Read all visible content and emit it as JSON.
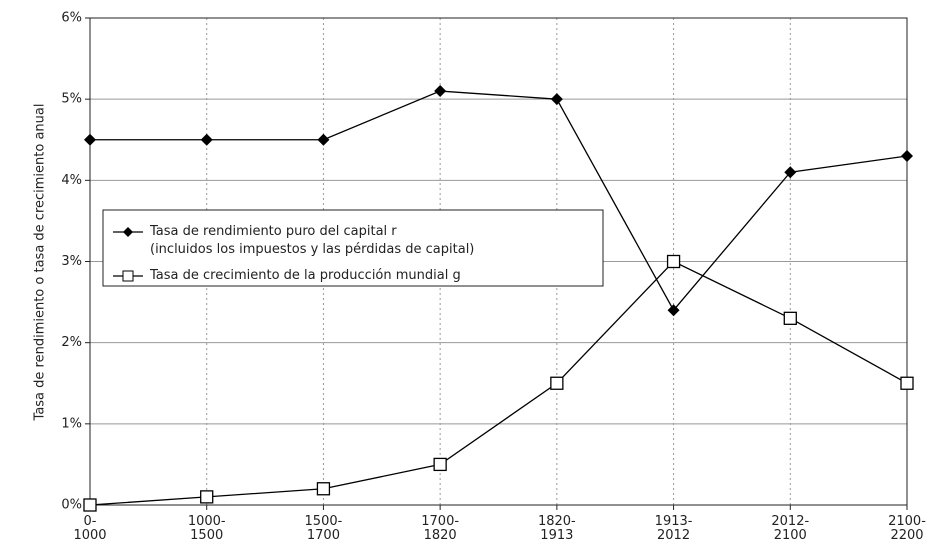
{
  "chart_data": {
    "type": "line",
    "y_label": "Tasa de rendimiento o tasa de crecimiento anual",
    "categories": [
      "0-\n1000",
      "1000-\n1500",
      "1500-\n1700",
      "1700-\n1820",
      "1820-\n1913",
      "1913-\n2012",
      "2012-\n2100",
      "2100-\n2200"
    ],
    "series": [
      {
        "name": "Tasa de rendimiento puro del capital r\n(incluidos los impuestos y las pérdidas de capital)",
        "color": "#000000",
        "marker": "diamond",
        "values": [
          4.5,
          4.5,
          4.5,
          5.1,
          5.0,
          2.4,
          4.1,
          4.3
        ]
      },
      {
        "name": "Tasa de crecimiento de la producción mundial g",
        "color": "#000000",
        "marker": "square",
        "values": [
          0.0,
          0.1,
          0.2,
          0.5,
          1.5,
          3.0,
          2.3,
          1.5
        ]
      }
    ],
    "ylim": [
      0,
      6
    ],
    "yticks": [
      {
        "value": 0,
        "label": "0%"
      },
      {
        "value": 1,
        "label": "1%"
      },
      {
        "value": 2,
        "label": "2%"
      },
      {
        "value": 3,
        "label": "3%"
      },
      {
        "value": 4,
        "label": "4%"
      },
      {
        "value": 5,
        "label": "5%"
      },
      {
        "value": 6,
        "label": "6%"
      }
    ],
    "grid": true
  }
}
